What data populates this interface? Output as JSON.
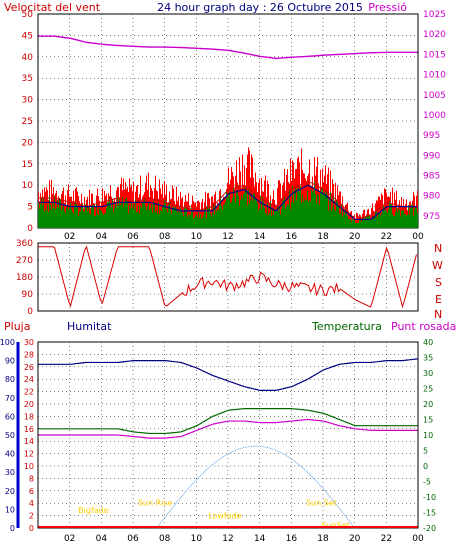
{
  "header": {
    "title": "24 hour graph day : 26 Octubre 2015",
    "wind_label": "Velocitat del vent",
    "pressure_label": "Pressió"
  },
  "colors": {
    "wind": "#cc0000",
    "gust": "#ff0000",
    "avg": "#00008b",
    "dir": "#dd0000",
    "pressure": "#cc00cc",
    "humidity": "#000080",
    "temperature": "#006600",
    "dewpoint": "#cc00cc",
    "rain": "#ff0000",
    "solar": "#aaccee",
    "events": "#ffcc00"
  },
  "chart_data": [
    {
      "type": "line",
      "name": "wind-pressure",
      "x": [
        1,
        2,
        3,
        4,
        5,
        6,
        7,
        8,
        9,
        10,
        11,
        12,
        13,
        14,
        15,
        16,
        17,
        18,
        19,
        20,
        21,
        22,
        23,
        24
      ],
      "x_ticks": [
        "02",
        "04",
        "06",
        "08",
        "10",
        "12",
        "14",
        "16",
        "18",
        "20",
        "22",
        "00"
      ],
      "x_tick_hours": [
        2,
        4,
        6,
        8,
        10,
        12,
        14,
        16,
        18,
        20,
        22,
        24
      ],
      "ylim": [
        0,
        50
      ],
      "y_ticks": [
        0,
        5,
        10,
        15,
        20,
        25,
        30,
        35,
        40,
        45,
        50
      ],
      "y2lim": [
        972,
        1025
      ],
      "y2_ticks": [
        975,
        980,
        985,
        990,
        995,
        1000,
        1005,
        1010,
        1015,
        1020,
        1025
      ],
      "series": [
        {
          "name": "Velocitat del vent",
          "axis": "left",
          "values": [
            7,
            6,
            5,
            6,
            7,
            6,
            7,
            6,
            5,
            4,
            5,
            9,
            10,
            7,
            5,
            9,
            11,
            9,
            6,
            2,
            3,
            6,
            5,
            5
          ]
        },
        {
          "name": "gust",
          "axis": "left",
          "values": [
            10,
            9,
            8,
            9,
            11,
            10,
            12,
            10,
            8,
            7,
            8,
            13,
            18,
            13,
            9,
            15,
            17,
            14,
            9,
            3,
            5,
            9,
            7,
            8
          ]
        },
        {
          "name": "avg",
          "axis": "left",
          "values": [
            6,
            5,
            5,
            5,
            6,
            6,
            6,
            5,
            4,
            4,
            4,
            8,
            9,
            6,
            4,
            8,
            10,
            8,
            5,
            2,
            2,
            5,
            5,
            5
          ]
        },
        {
          "name": "Pressió",
          "axis": "right",
          "values": [
            1019.5,
            1019,
            1018,
            1017.5,
            1017.2,
            1017,
            1016.8,
            1016.8,
            1016.7,
            1016.5,
            1016.3,
            1016,
            1015.3,
            1014.5,
            1014,
            1014.3,
            1014.5,
            1014.8,
            1015,
            1015.2,
            1015.4,
            1015.5,
            1015.5,
            1015.5
          ]
        }
      ]
    },
    {
      "type": "line",
      "name": "wind-direction",
      "ylim": [
        0,
        360
      ],
      "y_ticks": [
        0,
        90,
        180,
        270,
        360
      ],
      "compass": [
        "N",
        "W",
        "S",
        "E",
        "N"
      ],
      "series": [
        {
          "name": "direction",
          "values": [
            340,
            20,
            350,
            30,
            340,
            340,
            340,
            20,
            90,
            140,
            160,
            130,
            150,
            180,
            140,
            130,
            120,
            110,
            120,
            60,
            20,
            340,
            20,
            340
          ]
        }
      ]
    },
    {
      "type": "line",
      "name": "humidity-temperature",
      "labels": {
        "rain": "Pluja",
        "humidity": "Humitat",
        "temperature": "Temperatura",
        "dewpoint": "Punt rosada"
      },
      "left_axis": {
        "lim": [
          0,
          100
        ],
        "ticks": [
          0,
          10,
          20,
          30,
          40,
          50,
          60,
          70,
          80,
          90,
          100
        ]
      },
      "left2_axis": {
        "lim": [
          0,
          30
        ],
        "ticks": [
          0,
          2,
          4,
          6,
          8,
          10,
          12,
          14,
          16,
          18,
          20,
          22,
          24,
          26,
          28,
          30
        ]
      },
      "right_axis": {
        "lim": [
          -20,
          40
        ],
        "ticks": [
          -20,
          -15,
          -10,
          -5,
          0,
          5,
          10,
          15,
          20,
          25,
          30,
          35,
          40
        ]
      },
      "series": [
        {
          "name": "Humitat",
          "axis": "left",
          "values": [
            88,
            88,
            89,
            89,
            89,
            90,
            90,
            90,
            89,
            86,
            82,
            79,
            76,
            74,
            74,
            76,
            80,
            85,
            88,
            89,
            89,
            90,
            90,
            91
          ]
        },
        {
          "name": "Temperatura",
          "axis": "right",
          "values": [
            12,
            12,
            12,
            12,
            12,
            11,
            10.5,
            10.5,
            11,
            13,
            16,
            18,
            18.5,
            18.5,
            18.5,
            18.5,
            18,
            17,
            15,
            13,
            13,
            13,
            13,
            13
          ]
        },
        {
          "name": "Punt rosada",
          "axis": "right",
          "values": [
            10,
            10,
            10,
            10,
            10,
            9.5,
            9,
            9,
            9.5,
            11.5,
            13.5,
            14.5,
            14.5,
            14,
            14,
            14.5,
            15,
            14.5,
            13,
            12,
            11.5,
            11.5,
            11.5,
            11.5
          ]
        },
        {
          "name": "Pluja",
          "axis": "left2",
          "values": [
            0,
            0,
            0,
            0,
            0,
            0,
            0,
            0,
            0,
            0,
            0,
            0,
            0,
            0,
            0,
            0,
            0,
            0,
            0,
            0,
            0,
            0,
            0,
            0
          ]
        }
      ],
      "solar": {
        "start_hour": 7.5,
        "peak_hour": 13.8,
        "end_hour": 20.0,
        "peak": 44
      },
      "events": [
        {
          "label": "Sun Rise",
          "hour": 7.4,
          "level": 12
        },
        {
          "label": "Sun Set",
          "hour": 17.9,
          "level": 12
        },
        {
          "label": "Bigfade",
          "hour": 3.5,
          "level": 8
        },
        {
          "label": "Lowfade",
          "hour": 11.8,
          "level": 5
        },
        {
          "label": "SunSet",
          "hour": 18.8,
          "level": 0
        }
      ]
    }
  ]
}
